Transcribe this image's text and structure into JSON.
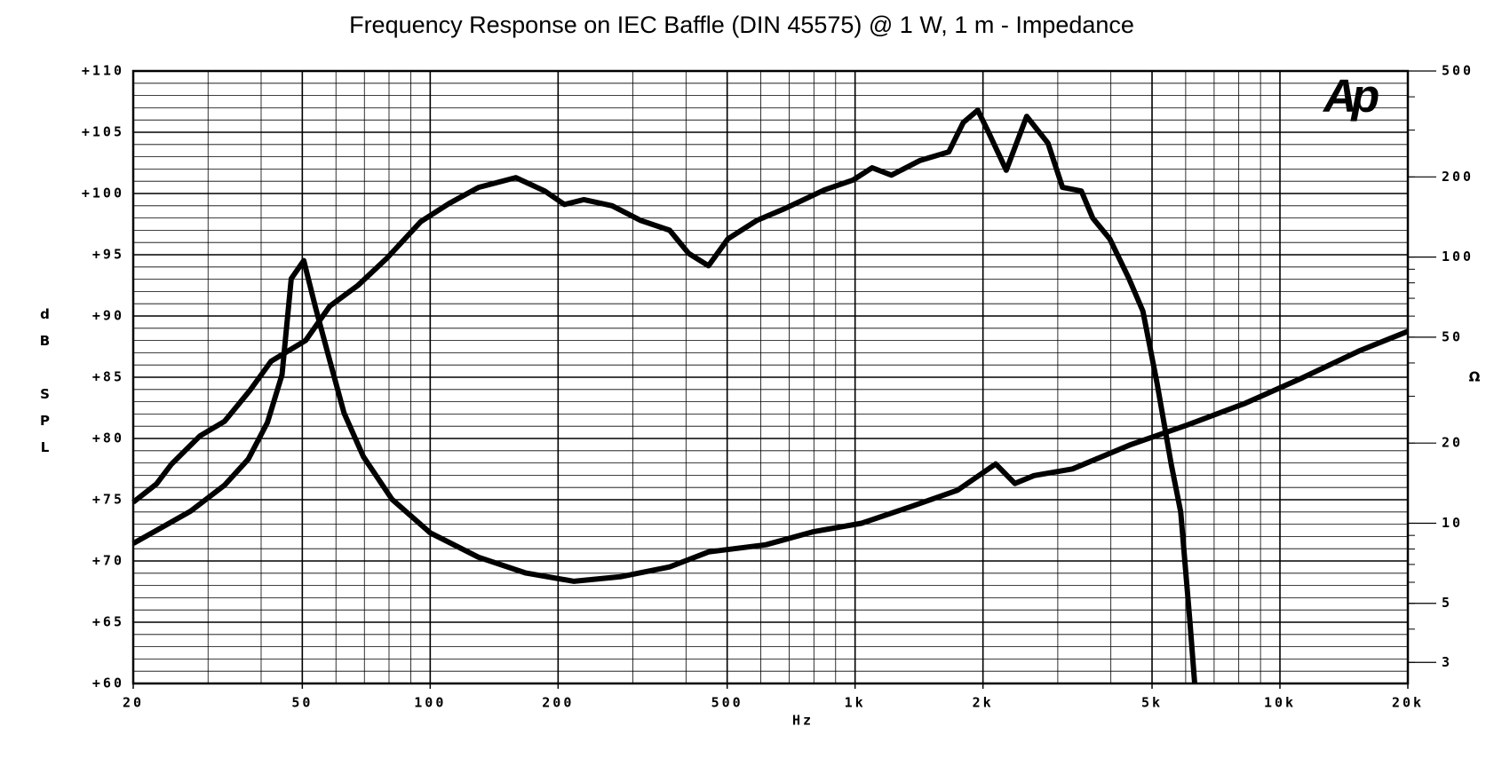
{
  "chart_data": {
    "type": "line",
    "title": "Frequency Response on IEC Baffle (DIN 45575) @ 1 W, 1 m - Impedance",
    "x_label": "Hz",
    "y_label": "dB SPL",
    "y2_label": "Ω",
    "logo": "Ap",
    "x_scale": "log",
    "y2_scale": "log",
    "grid": true,
    "xlim": [
      20,
      20000
    ],
    "xticks": [
      20,
      50,
      100,
      200,
      500,
      {
        "value": 1000,
        "label": "1k"
      },
      {
        "value": 2000,
        "label": "2k"
      },
      {
        "value": 5000,
        "label": "5k"
      },
      {
        "value": 10000,
        "label": "10k"
      },
      {
        "value": 20000,
        "label": "20k"
      }
    ],
    "ylim": [
      60,
      110
    ],
    "yticks": [
      {
        "value": 60,
        "label": "+60"
      },
      {
        "value": 65,
        "label": "+65"
      },
      {
        "value": 70,
        "label": "+70"
      },
      {
        "value": 75,
        "label": "+75"
      },
      {
        "value": 80,
        "label": "+80"
      },
      {
        "value": 85,
        "label": "+85"
      },
      {
        "value": 90,
        "label": "+90"
      },
      {
        "value": 95,
        "label": "+95"
      },
      {
        "value": 100,
        "label": "+100"
      },
      {
        "value": 105,
        "label": "+105"
      },
      {
        "value": 110,
        "label": "+110"
      }
    ],
    "y2lim": [
      2.5,
      500
    ],
    "y2ticks": [
      3,
      5,
      10,
      20,
      50,
      100,
      200,
      500
    ],
    "series": [
      {
        "color": "#000000",
        "x": [
          20,
          22.7,
          24.6,
          28.7,
          32.8,
          37.6,
          42.2,
          50.9,
          58,
          67.6,
          79,
          95,
          111,
          130,
          159,
          186,
          207,
          230,
          268,
          313,
          366,
          406,
          452,
          502,
          587,
          686,
          847,
          989,
          1097,
          1218,
          1423,
          1662,
          1798,
          1944,
          2048,
          2269,
          2535,
          2846,
          3077,
          3408,
          3625,
          3976,
          4405,
          4757,
          5138,
          5547,
          5840,
          6140,
          6300
        ],
        "values": [
          74.8,
          76.3,
          77.9,
          80.2,
          81.4,
          83.9,
          86.3,
          88.0,
          90.8,
          92.5,
          94.7,
          97.7,
          99.2,
          100.5,
          101.3,
          100.2,
          99.1,
          99.5,
          99.0,
          97.8,
          97.0,
          95.1,
          94.1,
          96.3,
          97.8,
          98.8,
          100.3,
          101.1,
          102.1,
          101.5,
          102.7,
          103.4,
          105.8,
          106.8,
          105.2,
          101.9,
          106.3,
          104.1,
          100.5,
          100.2,
          98.0,
          96.3,
          93.1,
          90.4,
          84.5,
          77.9,
          74.0,
          65.0,
          60.0
        ]
      },
      {
        "color": "#000000",
        "axis": "y2",
        "x": [
          20,
          22.7,
          27.3,
          32.8,
          37.3,
          41.4,
          44.8,
          47.1,
          50.4,
          53.7,
          58,
          62.7,
          69.6,
          81.3,
          100,
          130,
          168,
          218,
          282,
          366,
          452,
          617,
          800,
          1036,
          1343,
          1742,
          2143,
          2378,
          2637,
          3250,
          4440,
          6060,
          8280,
          11300,
          15420,
          20000
        ],
        "values": [
          8.4,
          9.4,
          11.1,
          13.9,
          17.4,
          23.9,
          36.1,
          83,
          97,
          64.7,
          40.9,
          25.9,
          17.8,
          12.3,
          9.2,
          7.45,
          6.5,
          6.05,
          6.3,
          6.85,
          7.8,
          8.3,
          9.3,
          10.0,
          11.5,
          13.3,
          16.7,
          14.1,
          15.1,
          16.0,
          19.7,
          23.4,
          28.2,
          35.2,
          44.5,
          52.6
        ]
      }
    ]
  }
}
